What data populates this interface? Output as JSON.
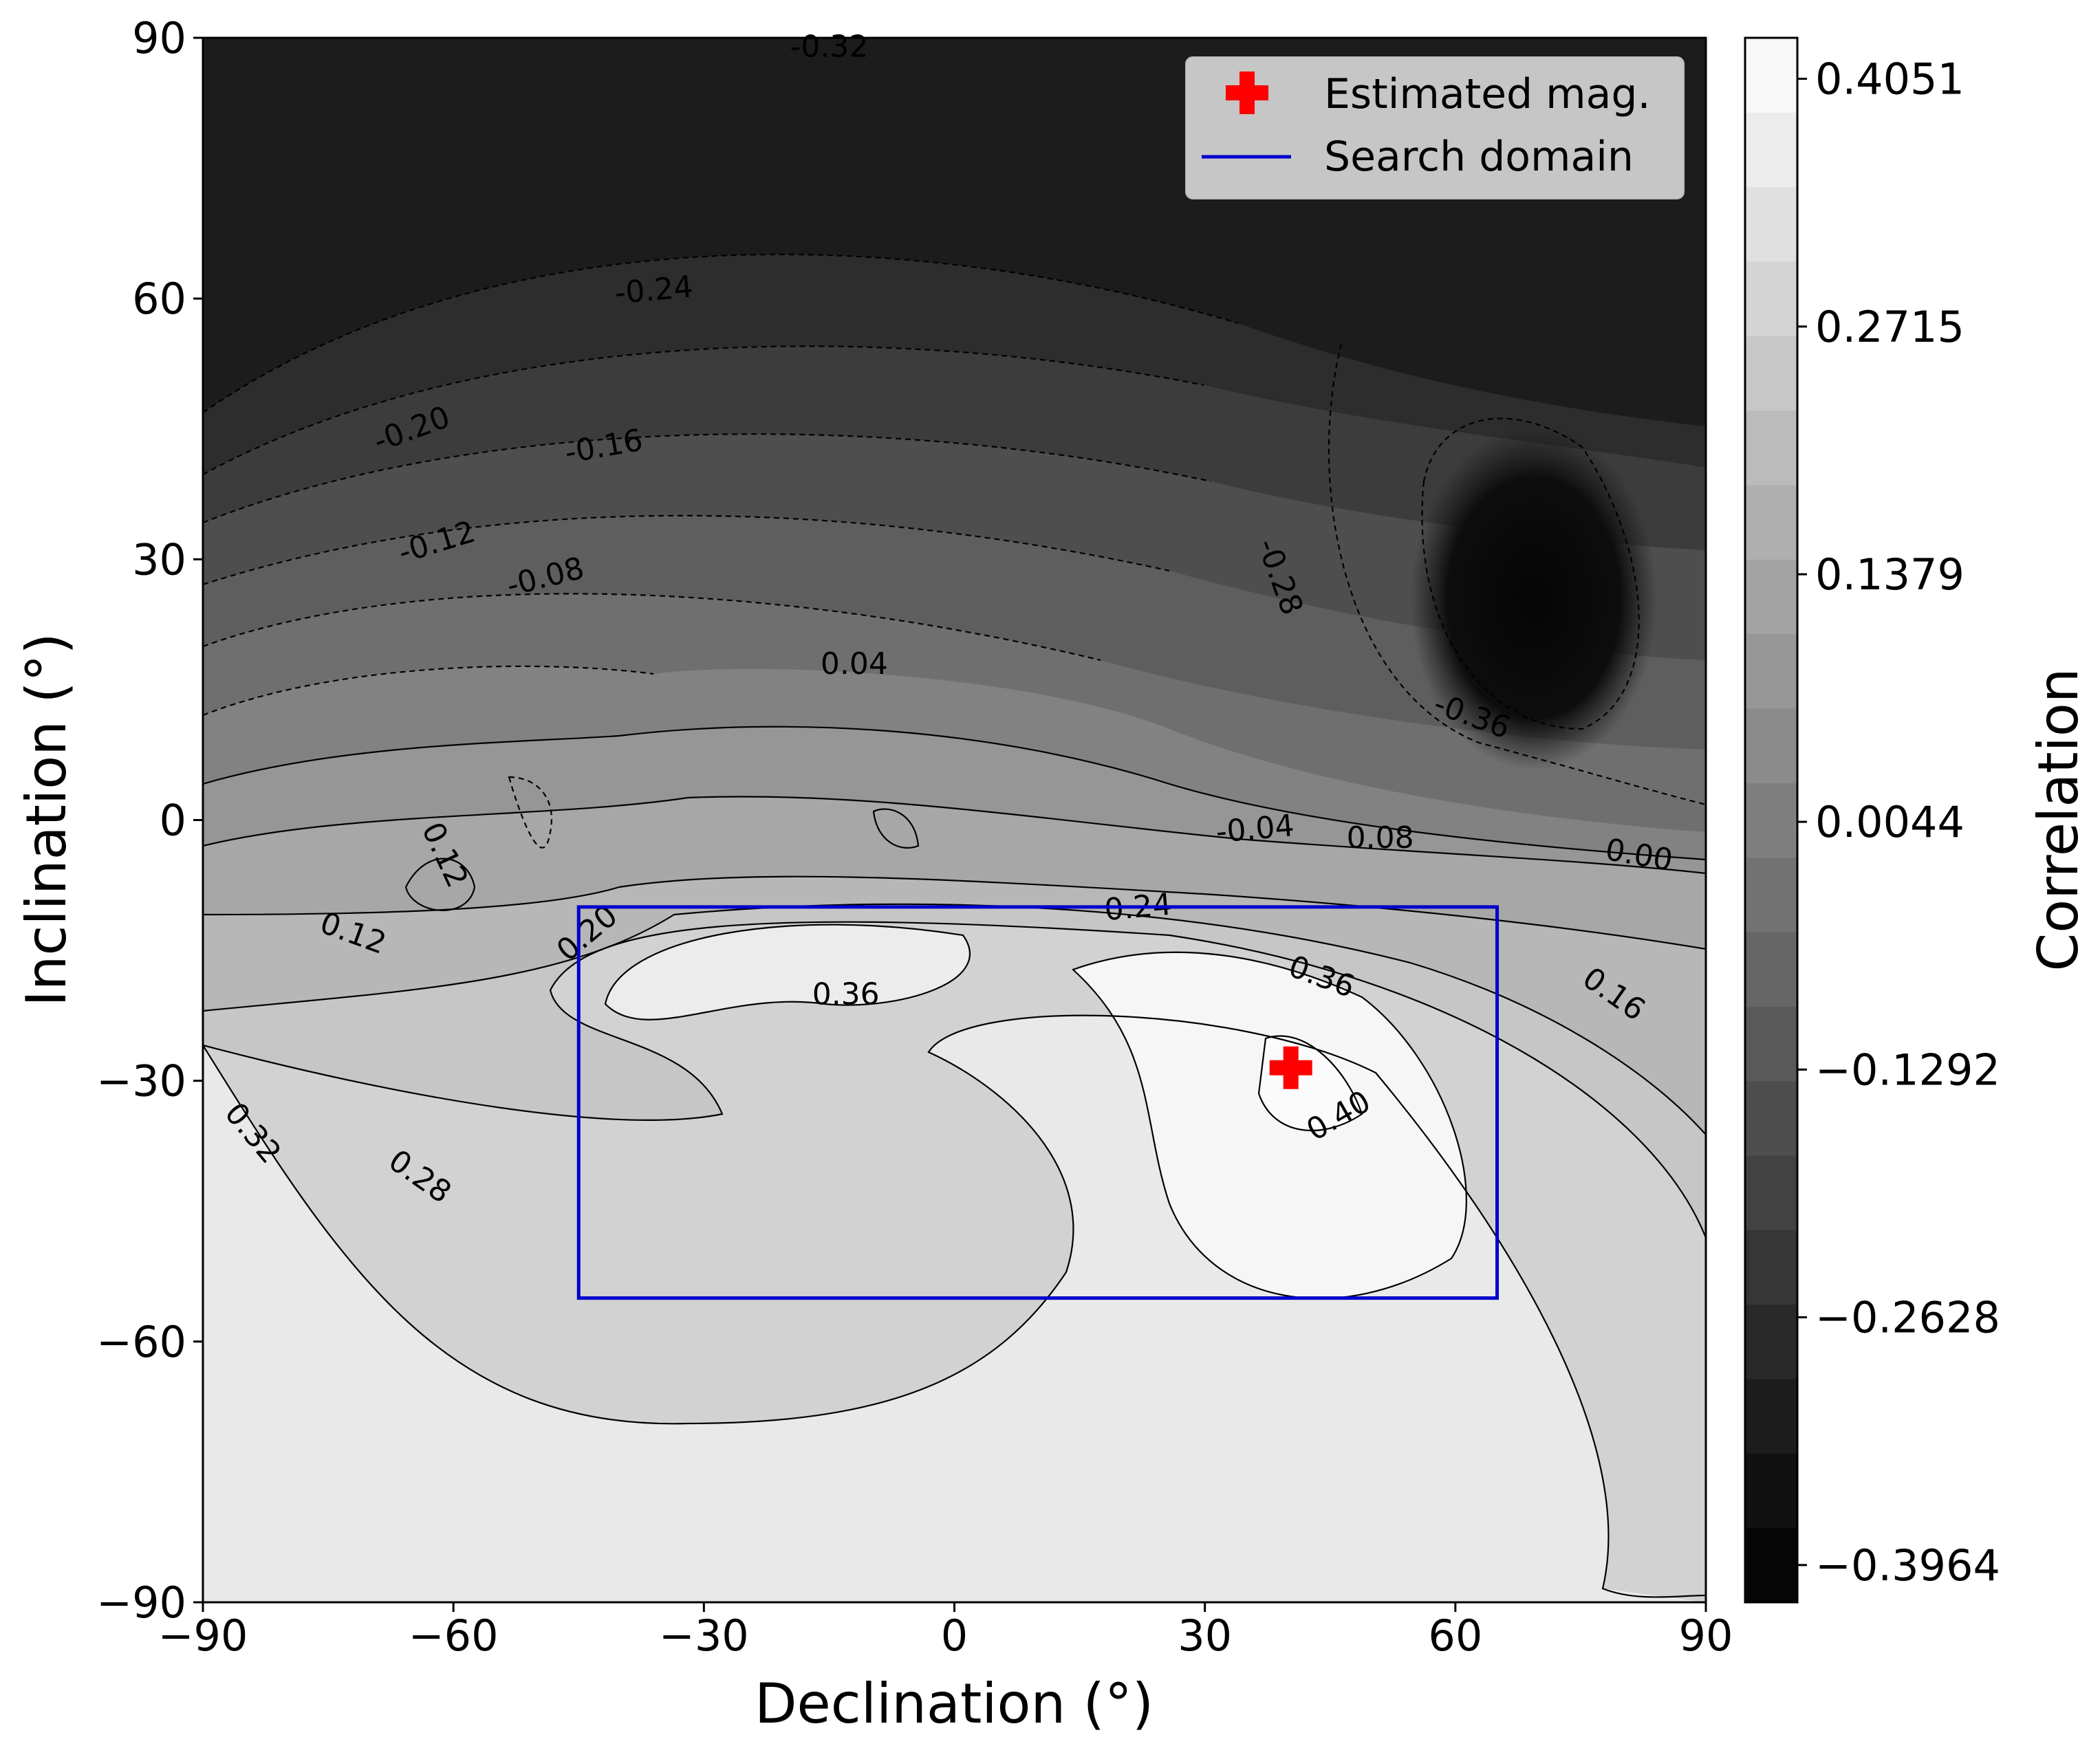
{
  "chart_data": {
    "type": "contour",
    "title": "",
    "xlabel": "Declination (°)",
    "ylabel": "Inclination (°)",
    "xlim": [
      -90,
      90
    ],
    "ylim": [
      -90,
      90
    ],
    "xticks": [
      "−90",
      "−60",
      "−30",
      "0",
      "30",
      "60",
      "90"
    ],
    "xtick_values": [
      -90,
      -60,
      -30,
      0,
      30,
      60,
      90
    ],
    "yticks": [
      "−90",
      "−60",
      "−30",
      "0",
      "30",
      "60",
      "90"
    ],
    "ytick_values": [
      -90,
      -60,
      -30,
      0,
      30,
      60,
      90
    ],
    "colormap": "gray",
    "colorbar": {
      "label": "Correlation",
      "min": -0.3964,
      "max": 0.4051,
      "levels": 21,
      "ticks": [
        {
          "value": 0.4051,
          "label": "0.4051"
        },
        {
          "value": 0.2715,
          "label": "0.2715"
        },
        {
          "value": 0.1379,
          "label": "0.1379"
        },
        {
          "value": 0.0044,
          "label": "0.0044"
        },
        {
          "value": -0.1292,
          "label": "−0.1292"
        },
        {
          "value": -0.2628,
          "label": "−0.2628"
        },
        {
          "value": -0.3964,
          "label": "−0.3964"
        }
      ]
    },
    "contour_labels": [
      {
        "text": "-0.32",
        "x": -15,
        "y": 89,
        "angle": 0
      },
      {
        "text": "-0.24",
        "x": -36,
        "y": 61,
        "angle": -5
      },
      {
        "text": "-0.20",
        "x": -65,
        "y": 45,
        "angle": -20
      },
      {
        "text": "-0.16",
        "x": -42,
        "y": 43,
        "angle": -10
      },
      {
        "text": "-0.12",
        "x": -62,
        "y": 32,
        "angle": -17
      },
      {
        "text": "-0.08",
        "x": -49,
        "y": 28,
        "angle": -14
      },
      {
        "text": "0.04",
        "x": -12,
        "y": 18,
        "angle": 0
      },
      {
        "text": "-0.28",
        "x": 39,
        "y": 28,
        "angle": 70
      },
      {
        "text": "-0.36",
        "x": 62,
        "y": 12,
        "angle": 20
      },
      {
        "text": "-0.04",
        "x": 36,
        "y": -1,
        "angle": -5
      },
      {
        "text": "0.08",
        "x": 51,
        "y": -2,
        "angle": 0
      },
      {
        "text": "0.00",
        "x": 82,
        "y": -4,
        "angle": 10
      },
      {
        "text": "0.12",
        "x": -61,
        "y": -4,
        "angle": 65
      },
      {
        "text": "0.12",
        "x": -72,
        "y": -13,
        "angle": 20
      },
      {
        "text": "0.20",
        "x": -44,
        "y": -13,
        "angle": -40
      },
      {
        "text": "0.24",
        "x": 22,
        "y": -10,
        "angle": -5
      },
      {
        "text": "0.36",
        "x": -13,
        "y": -20,
        "angle": 0
      },
      {
        "text": "0.36",
        "x": 44,
        "y": -18,
        "angle": 20
      },
      {
        "text": "0.16",
        "x": 79,
        "y": -20,
        "angle": 35
      },
      {
        "text": "0.40",
        "x": 46,
        "y": -34,
        "angle": -30
      },
      {
        "text": "0.32",
        "x": -84,
        "y": -36,
        "angle": 50
      },
      {
        "text": "0.28",
        "x": -64,
        "y": -41,
        "angle": 35
      }
    ],
    "estimated_mag": {
      "declination": 40.3,
      "inclination": -28.5
    },
    "search_domain": {
      "dec_min": -45,
      "dec_max": 65,
      "inc_min": -55,
      "inc_max": -10
    },
    "legend": {
      "position": "top-right",
      "entries": [
        {
          "label": "Estimated mag.",
          "marker": "plus",
          "color": "#ff0000"
        },
        {
          "label": "Search domain",
          "marker": "line",
          "color": "#0000cc"
        }
      ]
    }
  }
}
